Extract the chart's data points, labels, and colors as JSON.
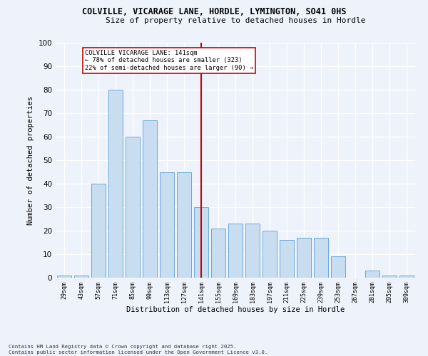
{
  "title1": "COLVILLE, VICARAGE LANE, HORDLE, LYMINGTON, SO41 0HS",
  "title2": "Size of property relative to detached houses in Hordle",
  "xlabel": "Distribution of detached houses by size in Hordle",
  "ylabel": "Number of detached properties",
  "categories": [
    "29sqm",
    "43sqm",
    "57sqm",
    "71sqm",
    "85sqm",
    "99sqm",
    "113sqm",
    "127sqm",
    "141sqm",
    "155sqm",
    "169sqm",
    "183sqm",
    "197sqm",
    "211sqm",
    "225sqm",
    "239sqm",
    "253sqm",
    "267sqm",
    "281sqm",
    "295sqm",
    "309sqm"
  ],
  "values": [
    1,
    1,
    40,
    80,
    60,
    67,
    45,
    45,
    30,
    21,
    23,
    23,
    20,
    16,
    17,
    17,
    9,
    0,
    3,
    1,
    1
  ],
  "bar_color": "#c8ddf0",
  "bar_edge_color": "#5a9fd4",
  "reference_line_x": 8,
  "annotation_text": "COLVILLE VICARAGE LANE: 141sqm\n← 78% of detached houses are smaller (323)\n22% of semi-detached houses are larger (90) →",
  "annotation_box_color": "#ffffff",
  "annotation_box_edge_color": "#cc0000",
  "ref_line_color": "#cc0000",
  "footer": "Contains HM Land Registry data © Crown copyright and database right 2025.\nContains public sector information licensed under the Open Government Licence v3.0.",
  "ylim": [
    0,
    100
  ],
  "yticks": [
    0,
    10,
    20,
    30,
    40,
    50,
    60,
    70,
    80,
    90,
    100
  ],
  "background_color": "#eef2fb",
  "grid_color": "#ffffff"
}
